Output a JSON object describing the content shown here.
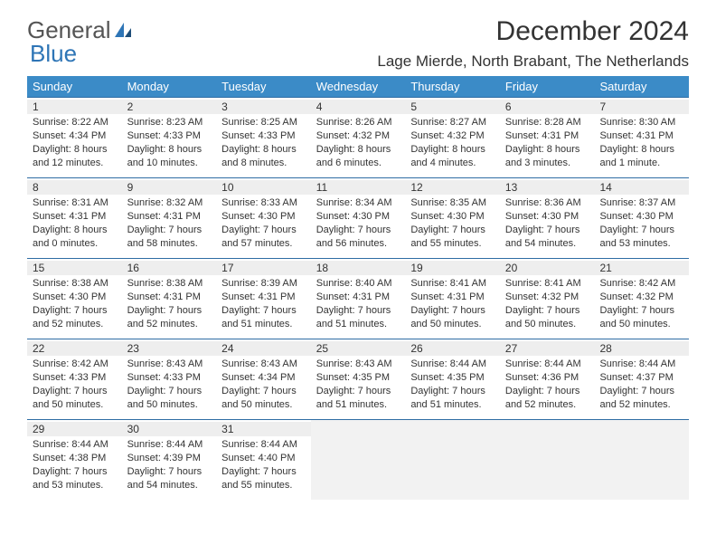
{
  "logo": {
    "text1": "General",
    "text2": "Blue"
  },
  "colors": {
    "header_bg": "#3b8bc7",
    "header_week_border": "#2e6da4",
    "daynum_band_bg": "#eeeeee",
    "empty_bg": "#f2f2f2"
  },
  "title": "December 2024",
  "location": "Lage Mierde, North Brabant, The Netherlands",
  "dow": [
    "Sunday",
    "Monday",
    "Tuesday",
    "Wednesday",
    "Thursday",
    "Friday",
    "Saturday"
  ],
  "weeks": [
    [
      {
        "n": "1",
        "sr": "Sunrise: 8:22 AM",
        "ss": "Sunset: 4:34 PM",
        "dl": "Daylight: 8 hours and 12 minutes."
      },
      {
        "n": "2",
        "sr": "Sunrise: 8:23 AM",
        "ss": "Sunset: 4:33 PM",
        "dl": "Daylight: 8 hours and 10 minutes."
      },
      {
        "n": "3",
        "sr": "Sunrise: 8:25 AM",
        "ss": "Sunset: 4:33 PM",
        "dl": "Daylight: 8 hours and 8 minutes."
      },
      {
        "n": "4",
        "sr": "Sunrise: 8:26 AM",
        "ss": "Sunset: 4:32 PM",
        "dl": "Daylight: 8 hours and 6 minutes."
      },
      {
        "n": "5",
        "sr": "Sunrise: 8:27 AM",
        "ss": "Sunset: 4:32 PM",
        "dl": "Daylight: 8 hours and 4 minutes."
      },
      {
        "n": "6",
        "sr": "Sunrise: 8:28 AM",
        "ss": "Sunset: 4:31 PM",
        "dl": "Daylight: 8 hours and 3 minutes."
      },
      {
        "n": "7",
        "sr": "Sunrise: 8:30 AM",
        "ss": "Sunset: 4:31 PM",
        "dl": "Daylight: 8 hours and 1 minute."
      }
    ],
    [
      {
        "n": "8",
        "sr": "Sunrise: 8:31 AM",
        "ss": "Sunset: 4:31 PM",
        "dl": "Daylight: 8 hours and 0 minutes."
      },
      {
        "n": "9",
        "sr": "Sunrise: 8:32 AM",
        "ss": "Sunset: 4:31 PM",
        "dl": "Daylight: 7 hours and 58 minutes."
      },
      {
        "n": "10",
        "sr": "Sunrise: 8:33 AM",
        "ss": "Sunset: 4:30 PM",
        "dl": "Daylight: 7 hours and 57 minutes."
      },
      {
        "n": "11",
        "sr": "Sunrise: 8:34 AM",
        "ss": "Sunset: 4:30 PM",
        "dl": "Daylight: 7 hours and 56 minutes."
      },
      {
        "n": "12",
        "sr": "Sunrise: 8:35 AM",
        "ss": "Sunset: 4:30 PM",
        "dl": "Daylight: 7 hours and 55 minutes."
      },
      {
        "n": "13",
        "sr": "Sunrise: 8:36 AM",
        "ss": "Sunset: 4:30 PM",
        "dl": "Daylight: 7 hours and 54 minutes."
      },
      {
        "n": "14",
        "sr": "Sunrise: 8:37 AM",
        "ss": "Sunset: 4:30 PM",
        "dl": "Daylight: 7 hours and 53 minutes."
      }
    ],
    [
      {
        "n": "15",
        "sr": "Sunrise: 8:38 AM",
        "ss": "Sunset: 4:30 PM",
        "dl": "Daylight: 7 hours and 52 minutes."
      },
      {
        "n": "16",
        "sr": "Sunrise: 8:38 AM",
        "ss": "Sunset: 4:31 PM",
        "dl": "Daylight: 7 hours and 52 minutes."
      },
      {
        "n": "17",
        "sr": "Sunrise: 8:39 AM",
        "ss": "Sunset: 4:31 PM",
        "dl": "Daylight: 7 hours and 51 minutes."
      },
      {
        "n": "18",
        "sr": "Sunrise: 8:40 AM",
        "ss": "Sunset: 4:31 PM",
        "dl": "Daylight: 7 hours and 51 minutes."
      },
      {
        "n": "19",
        "sr": "Sunrise: 8:41 AM",
        "ss": "Sunset: 4:31 PM",
        "dl": "Daylight: 7 hours and 50 minutes."
      },
      {
        "n": "20",
        "sr": "Sunrise: 8:41 AM",
        "ss": "Sunset: 4:32 PM",
        "dl": "Daylight: 7 hours and 50 minutes."
      },
      {
        "n": "21",
        "sr": "Sunrise: 8:42 AM",
        "ss": "Sunset: 4:32 PM",
        "dl": "Daylight: 7 hours and 50 minutes."
      }
    ],
    [
      {
        "n": "22",
        "sr": "Sunrise: 8:42 AM",
        "ss": "Sunset: 4:33 PM",
        "dl": "Daylight: 7 hours and 50 minutes."
      },
      {
        "n": "23",
        "sr": "Sunrise: 8:43 AM",
        "ss": "Sunset: 4:33 PM",
        "dl": "Daylight: 7 hours and 50 minutes."
      },
      {
        "n": "24",
        "sr": "Sunrise: 8:43 AM",
        "ss": "Sunset: 4:34 PM",
        "dl": "Daylight: 7 hours and 50 minutes."
      },
      {
        "n": "25",
        "sr": "Sunrise: 8:43 AM",
        "ss": "Sunset: 4:35 PM",
        "dl": "Daylight: 7 hours and 51 minutes."
      },
      {
        "n": "26",
        "sr": "Sunrise: 8:44 AM",
        "ss": "Sunset: 4:35 PM",
        "dl": "Daylight: 7 hours and 51 minutes."
      },
      {
        "n": "27",
        "sr": "Sunrise: 8:44 AM",
        "ss": "Sunset: 4:36 PM",
        "dl": "Daylight: 7 hours and 52 minutes."
      },
      {
        "n": "28",
        "sr": "Sunrise: 8:44 AM",
        "ss": "Sunset: 4:37 PM",
        "dl": "Daylight: 7 hours and 52 minutes."
      }
    ],
    [
      {
        "n": "29",
        "sr": "Sunrise: 8:44 AM",
        "ss": "Sunset: 4:38 PM",
        "dl": "Daylight: 7 hours and 53 minutes."
      },
      {
        "n": "30",
        "sr": "Sunrise: 8:44 AM",
        "ss": "Sunset: 4:39 PM",
        "dl": "Daylight: 7 hours and 54 minutes."
      },
      {
        "n": "31",
        "sr": "Sunrise: 8:44 AM",
        "ss": "Sunset: 4:40 PM",
        "dl": "Daylight: 7 hours and 55 minutes."
      },
      {
        "empty": true
      },
      {
        "empty": true
      },
      {
        "empty": true
      },
      {
        "empty": true
      }
    ]
  ]
}
